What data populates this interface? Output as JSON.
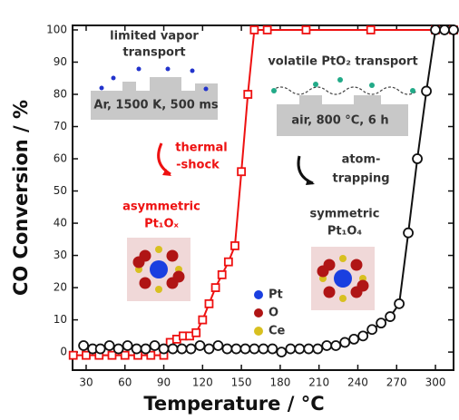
{
  "chart_data": {
    "type": "line",
    "x_label": "Temperature / °C",
    "y_label": "CO Conversion / %",
    "xlim": [
      19.5,
      314
    ],
    "ylim": [
      -5.6,
      101.4
    ],
    "xticks": [
      30,
      60,
      90,
      120,
      150,
      180,
      210,
      240,
      270,
      300
    ],
    "yticks": [
      0,
      10,
      20,
      30,
      40,
      50,
      60,
      70,
      80,
      90,
      100
    ],
    "series": [
      {
        "color": "#ee1111",
        "marker": "square",
        "x": [
          20,
          30,
          40,
          50,
          60,
          70,
          80,
          90,
          95,
          100,
          105,
          110,
          115,
          120,
          125,
          130,
          135,
          140,
          145,
          150,
          155,
          160,
          170,
          200,
          250,
          300,
          314
        ],
        "values": [
          -1,
          -1,
          -1,
          -1,
          -1,
          -1,
          -1,
          -1,
          3,
          4,
          5,
          5,
          6,
          10,
          15,
          20,
          24,
          28,
          33,
          56,
          80,
          100,
          100,
          100,
          100,
          100,
          100
        ]
      },
      {
        "color": "#111111",
        "marker": "circle",
        "x": [
          28,
          35,
          41,
          48,
          55,
          62,
          69,
          76,
          83,
          90,
          97,
          104,
          111,
          118,
          125,
          132,
          139,
          146,
          153,
          160,
          167,
          174,
          181,
          188,
          195,
          202,
          209,
          216,
          223,
          230,
          237,
          244,
          251,
          258,
          265,
          272,
          279,
          286,
          293,
          300,
          307,
          314
        ],
        "values": [
          2,
          1,
          1,
          2,
          1,
          2,
          1,
          1,
          2,
          1,
          1,
          1,
          1,
          2,
          1,
          2,
          1,
          1,
          1,
          1,
          1,
          1,
          0,
          1,
          1,
          1,
          1,
          2,
          2,
          3,
          4,
          5,
          7,
          9,
          11,
          15,
          37,
          60,
          81,
          100,
          100,
          100
        ]
      }
    ],
    "annotations": [
      "limited vapor",
      "transport",
      "Ar, 1500 K, 500 ms",
      "thermal",
      "-shock",
      "asymmetric",
      "Pt₁Oₓ",
      "volatile PtO₂ transport",
      "air, 800 °C, 6 h",
      "atom-",
      "trapping",
      "symmetric",
      "Pt₁O₄"
    ],
    "inset_legend": [
      {
        "label": "Pt",
        "color": "#1a3fe0"
      },
      {
        "label": "O",
        "color": "#b01515"
      },
      {
        "label": "Ce",
        "color": "#d8c020"
      }
    ]
  }
}
